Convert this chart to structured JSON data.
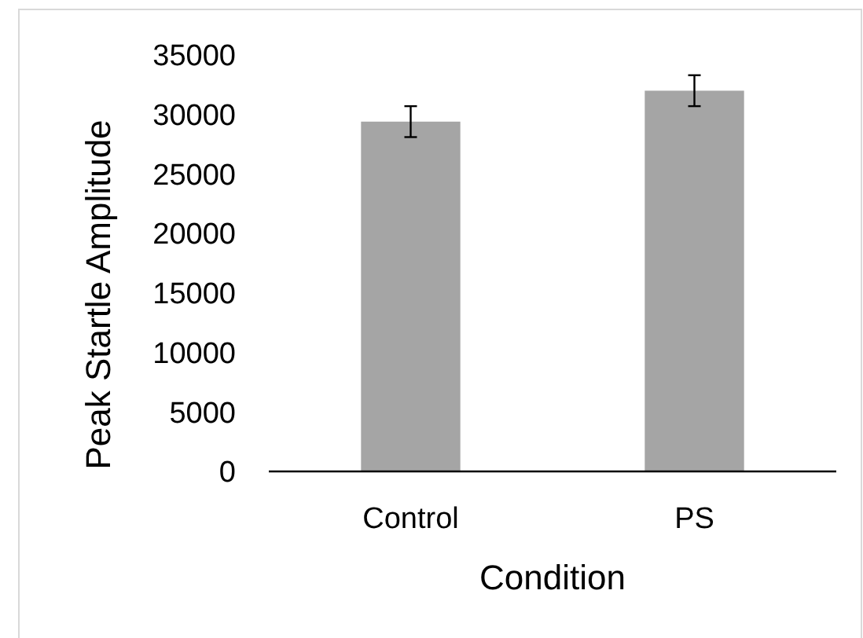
{
  "chart_data": {
    "type": "bar",
    "xlabel": "Condition",
    "ylabel": "Peak Startle Amplitude",
    "categories": [
      "Control",
      "PS"
    ],
    "values": [
      29400,
      32000
    ],
    "errors": [
      1300,
      1300
    ],
    "color": "#a5a5a5",
    "ylim": [
      0,
      35000
    ],
    "yticks": [
      0,
      5000,
      10000,
      15000,
      20000,
      25000,
      30000,
      35000
    ],
    "grid": false
  }
}
